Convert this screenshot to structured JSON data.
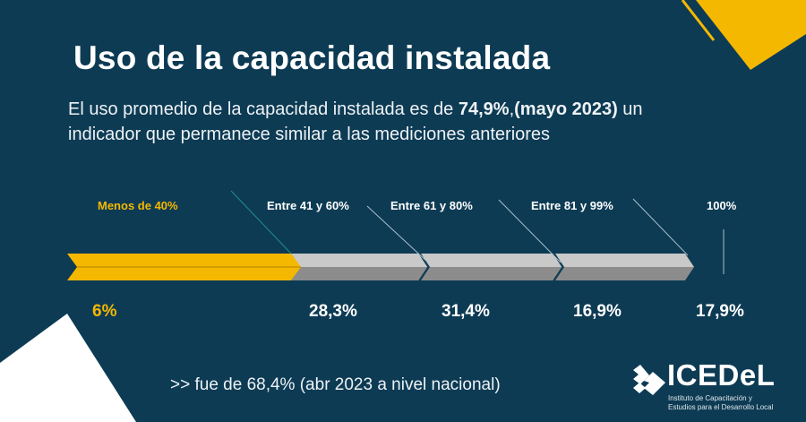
{
  "title": "Uso de la capacidad instalada",
  "intro": {
    "part1": "El uso promedio de la capacidad instalada es de ",
    "bold1": "74,9%",
    "part2": ",",
    "bold2": "(mayo 2023)",
    "part3": " un indicador que permanece similar a las mediciones anteriores"
  },
  "ranges": [
    {
      "label": "Menos de 40%",
      "value": "6%"
    },
    {
      "label": "Entre 41 y 60%",
      "value": "28,3%"
    },
    {
      "label": "Entre 61 y 80%",
      "value": "31,4%"
    },
    {
      "label": "Entre 81 y 99%",
      "value": "16,9%"
    },
    {
      "label": "100%",
      "value": "17,9%"
    }
  ],
  "footnote": ">> fue de 68,4% (abr 2023 a nivel nacional)",
  "logo": {
    "name": "ICEDeL",
    "subtitle_line1": "Instituto de Capacitación y",
    "subtitle_line2": "Estudios para el Desarrollo Local"
  },
  "colors": {
    "background": "#0d3b54",
    "accent": "#f5b800",
    "bar_light": "#c9c9c9",
    "bar_dark": "#8c8c8c"
  }
}
